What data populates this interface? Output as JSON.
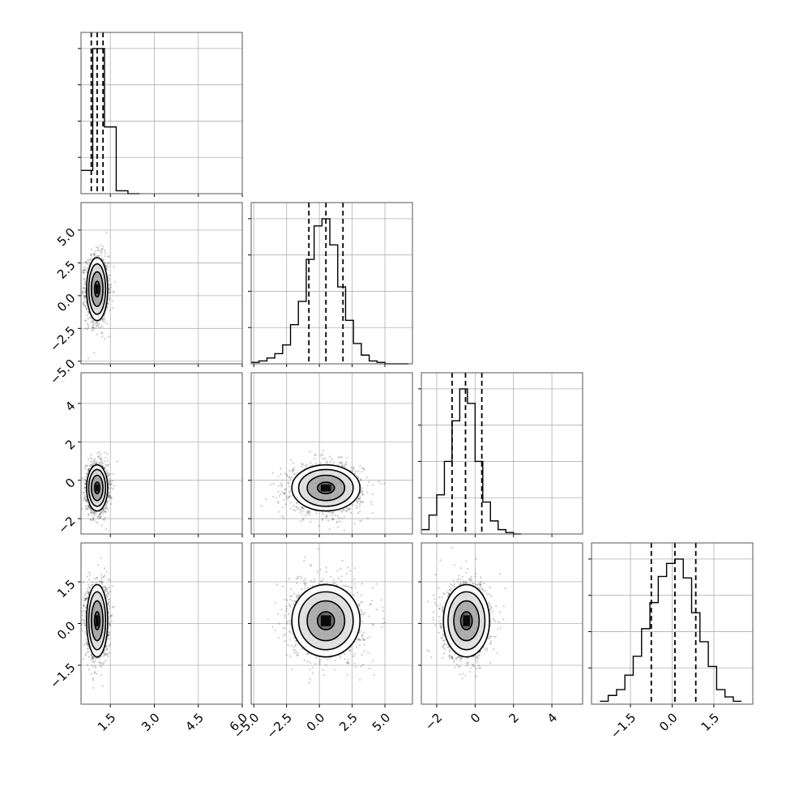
{
  "chart_data": {
    "type": "corner",
    "variables": [
      {
        "range": [
          0.5,
          6.0
        ],
        "ticks": [
          1.5,
          3.0,
          4.5,
          6.0
        ],
        "tick_labels": [
          "1.5",
          "3.0",
          "4.5",
          "6.0"
        ],
        "quantiles": [
          0.85,
          1.05,
          1.25
        ],
        "hist_bins": [
          0.5,
          0.9,
          1.3,
          1.7,
          2.1,
          2.5
        ],
        "hist_counts": [
          0.16,
          1.0,
          0.46,
          0.02,
          0.0
        ]
      },
      {
        "range": [
          -5.2,
          7.1
        ],
        "ticks": [
          -5.0,
          -2.5,
          0.0,
          2.5,
          5.0
        ],
        "tick_labels": [
          "−5.0",
          "−2.5",
          "0.0",
          "2.5",
          "5.0"
        ],
        "quantiles": [
          -0.8,
          0.5,
          1.8
        ],
        "hist_bins": [
          -5.2,
          -4.6,
          -4.0,
          -3.4,
          -2.8,
          -2.2,
          -1.6,
          -1.0,
          -0.4,
          0.2,
          0.8,
          1.4,
          2.0,
          2.6,
          3.2,
          3.8,
          4.4,
          5.0,
          5.6,
          6.2,
          6.8
        ],
        "hist_counts": [
          0.01,
          0.02,
          0.04,
          0.07,
          0.13,
          0.27,
          0.43,
          0.72,
          0.95,
          1.0,
          0.82,
          0.53,
          0.3,
          0.14,
          0.06,
          0.02,
          0.01,
          0.0,
          0.0,
          0.0
        ]
      },
      {
        "range": [
          -2.8,
          5.6
        ],
        "ticks": [
          -2,
          0,
          2,
          4
        ],
        "tick_labels": [
          "−2",
          "0",
          "2",
          "4"
        ],
        "quantiles": [
          -1.2,
          -0.5,
          0.35
        ],
        "hist_bins": [
          -2.8,
          -2.4,
          -2.0,
          -1.6,
          -1.2,
          -0.8,
          -0.4,
          0.0,
          0.4,
          0.8,
          1.2,
          1.6,
          2.0,
          2.4
        ],
        "hist_counts": [
          0.03,
          0.13,
          0.27,
          0.5,
          0.78,
          1.0,
          0.9,
          0.5,
          0.22,
          0.09,
          0.03,
          0.01,
          0.0
        ]
      },
      {
        "range": [
          -2.9,
          2.9
        ],
        "ticks": [
          -1.5,
          0.0,
          1.5
        ],
        "tick_labels": [
          "−1.5",
          "0.0",
          "1.5"
        ],
        "quantiles": [
          -0.75,
          0.1,
          0.85
        ],
        "hist_bins": [
          -2.6,
          -2.3,
          -2.0,
          -1.7,
          -1.4,
          -1.1,
          -0.8,
          -0.5,
          -0.2,
          0.1,
          0.4,
          0.7,
          1.0,
          1.3,
          1.6,
          1.9,
          2.2,
          2.5
        ],
        "hist_counts": [
          0.02,
          0.06,
          0.1,
          0.2,
          0.33,
          0.52,
          0.7,
          0.88,
          0.97,
          1.0,
          0.87,
          0.63,
          0.43,
          0.26,
          0.1,
          0.05,
          0.02
        ]
      }
    ],
    "pairs": [
      {
        "row": 1,
        "col": 0,
        "mean": [
          1.05,
          0.5
        ],
        "sd": [
          0.18,
          1.2
        ],
        "contour_levels": [
          0.5,
          1.1,
          1.6,
          2.0
        ]
      },
      {
        "row": 2,
        "col": 0,
        "mean": [
          1.05,
          -0.4
        ],
        "sd": [
          0.18,
          0.6
        ],
        "contour_levels": [
          0.5,
          1.1,
          1.6,
          2.0
        ]
      },
      {
        "row": 2,
        "col": 1,
        "mean": [
          0.5,
          -0.4
        ],
        "sd": [
          1.3,
          0.6
        ],
        "contour_levels": [
          0.5,
          1.1,
          1.6,
          2.0
        ]
      },
      {
        "row": 3,
        "col": 0,
        "mean": [
          1.05,
          0.1
        ],
        "sd": [
          0.18,
          0.65
        ],
        "contour_levels": [
          0.5,
          1.1,
          1.6,
          2.0
        ]
      },
      {
        "row": 3,
        "col": 1,
        "mean": [
          0.5,
          0.1
        ],
        "sd": [
          1.3,
          0.65
        ],
        "contour_levels": [
          0.5,
          1.1,
          1.6,
          2.0
        ]
      },
      {
        "row": 3,
        "col": 2,
        "mean": [
          -0.45,
          0.1
        ],
        "sd": [
          0.6,
          0.65
        ],
        "contour_levels": [
          0.5,
          1.1,
          1.6,
          2.0
        ]
      }
    ],
    "grid": true
  }
}
